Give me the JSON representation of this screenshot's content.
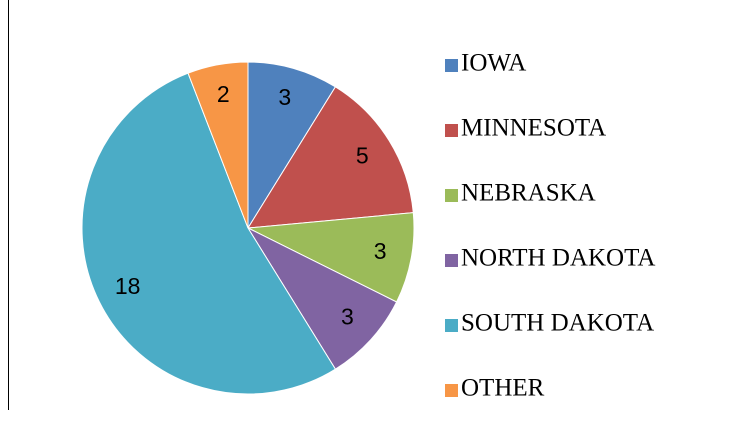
{
  "chart_data": {
    "type": "pie",
    "categories": [
      "IOWA",
      "MINNESOTA",
      "NEBRASKA",
      "NORTH DAKOTA",
      "SOUTH DAKOTA",
      "OTHER"
    ],
    "values": [
      3,
      5,
      3,
      3,
      18,
      2
    ],
    "colors": [
      "#4f81bd",
      "#c0504d",
      "#9bbb59",
      "#8064a2",
      "#4bacc6",
      "#f79646"
    ],
    "legend": "right"
  }
}
